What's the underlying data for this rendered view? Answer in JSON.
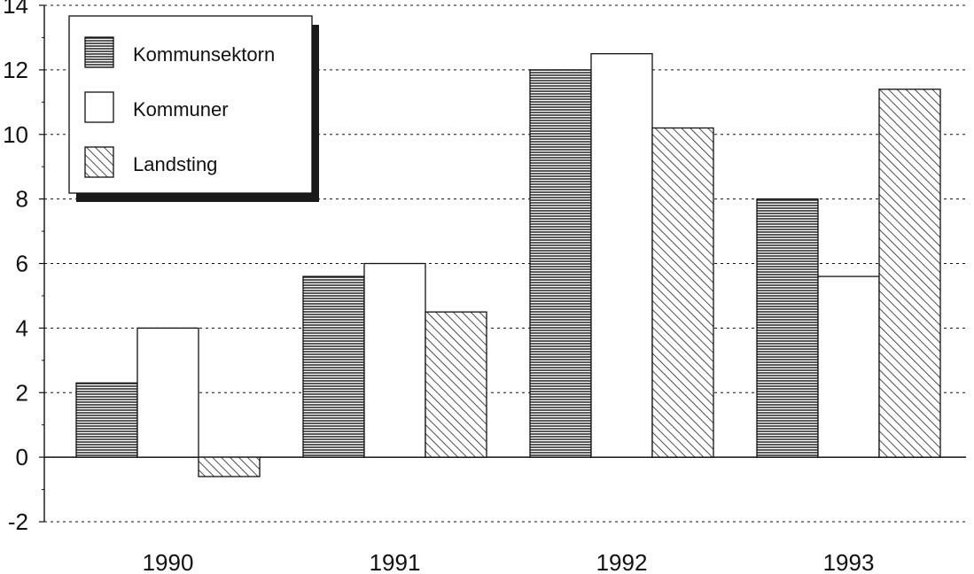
{
  "chart_data": {
    "type": "bar",
    "categories": [
      "1990",
      "1991",
      "1992",
      "1993"
    ],
    "series": [
      {
        "name": "Kommunsektorn",
        "values": [
          2.3,
          5.6,
          12.0,
          8.0
        ],
        "pattern": "horizontal-lines"
      },
      {
        "name": "Kommuner",
        "values": [
          4.0,
          6.0,
          12.5,
          5.6
        ],
        "pattern": "blank"
      },
      {
        "name": "Landsting",
        "values": [
          -0.6,
          4.5,
          10.2,
          11.4
        ],
        "pattern": "diagonal-lines"
      }
    ],
    "ylim": [
      -2,
      14
    ],
    "yticks": [
      -2,
      0,
      2,
      4,
      6,
      8,
      10,
      12,
      14
    ],
    "ytick_labels": [
      "-2",
      "0",
      "2",
      "4",
      "6",
      "8",
      "10",
      "12",
      "14"
    ],
    "grid": "dotted horizontal",
    "legend_position": "top-left",
    "title": "",
    "xlabel": "",
    "ylabel": "",
    "colors": {
      "ink": "#111111",
      "background": "#ffffff"
    }
  }
}
